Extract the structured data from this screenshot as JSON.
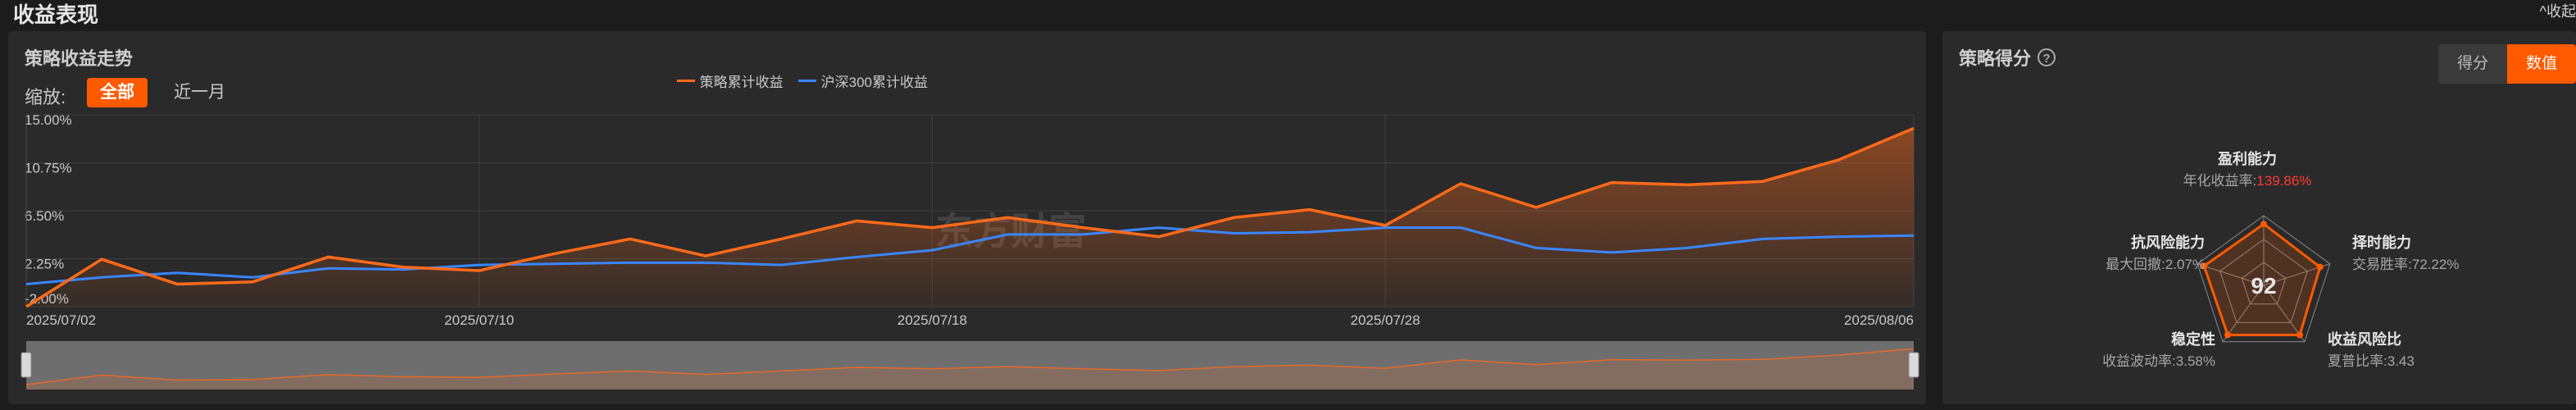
{
  "page": {
    "title": "收益表现",
    "collapse_label": "^收起"
  },
  "trend": {
    "title": "策略收益走势",
    "zoom_label": "缩放:",
    "zoom_all": "全部",
    "zoom_month": "近一月",
    "legend": [
      {
        "name": "策略累计收益",
        "color": "#ff6a1a"
      },
      {
        "name": "沪深300累计收益",
        "color": "#3a86ff"
      }
    ],
    "watermark": "东方财富"
  },
  "chart_data": {
    "type": "line",
    "ylim": [
      -2.0,
      15.0
    ],
    "y_ticks": [
      "15.00%",
      "10.75%",
      "6.50%",
      "2.25%",
      "-2.00%"
    ],
    "x_ticks": [
      "2025/07/02",
      "2025/07/10",
      "2025/07/18",
      "2025/07/28",
      "2025/08/06"
    ],
    "x": [
      "2025/07/02",
      "2025/07/03",
      "2025/07/04",
      "2025/07/07",
      "2025/07/08",
      "2025/07/09",
      "2025/07/10",
      "2025/07/11",
      "2025/07/14",
      "2025/07/15",
      "2025/07/16",
      "2025/07/17",
      "2025/07/18",
      "2025/07/21",
      "2025/07/22",
      "2025/07/23",
      "2025/07/24",
      "2025/07/25",
      "2025/07/28",
      "2025/07/29",
      "2025/07/30",
      "2025/07/31",
      "2025/08/01",
      "2025/08/04",
      "2025/08/05",
      "2025/08/06"
    ],
    "series": [
      {
        "name": "策略累计收益",
        "color": "#ff6a1a",
        "values": [
          -2.0,
          2.2,
          0.0,
          0.2,
          2.4,
          1.5,
          1.2,
          2.7,
          4.0,
          2.5,
          4.0,
          5.6,
          5.0,
          5.9,
          5.0,
          4.2,
          5.9,
          6.6,
          5.2,
          8.9,
          6.8,
          9.0,
          8.8,
          9.1,
          11.0,
          13.8
        ]
      },
      {
        "name": "沪深300累计收益",
        "color": "#3a86ff",
        "values": [
          0.0,
          0.6,
          1.0,
          0.6,
          1.4,
          1.3,
          1.7,
          1.8,
          1.9,
          1.9,
          1.7,
          2.4,
          3.0,
          4.4,
          4.4,
          5.0,
          4.5,
          4.6,
          5.0,
          5.0,
          3.2,
          2.8,
          3.2,
          4.0,
          4.2,
          4.3
        ]
      }
    ],
    "grid": true,
    "legend_position": "top-right"
  },
  "score": {
    "title": "策略得分",
    "help_icon": "question-circle-icon",
    "toggle_score": "得分",
    "toggle_value": "数值",
    "total": "92",
    "axes": [
      {
        "name": "盈利能力",
        "metric": "年化收益率:",
        "value": "139.86%",
        "highlight": true,
        "level": 0.88
      },
      {
        "name": "择时能力",
        "metric": "交易胜率:",
        "value": "72.22%",
        "highlight": false,
        "level": 0.85
      },
      {
        "name": "收益风险比",
        "metric": "夏普比率:",
        "value": "3.43",
        "highlight": false,
        "level": 0.88
      },
      {
        "name": "稳定性",
        "metric": "收益波动率:",
        "value": "3.58%",
        "highlight": false,
        "level": 0.88
      },
      {
        "name": "抗风险能力",
        "metric": "最大回撤:",
        "value": "2.07%",
        "highlight": false,
        "level": 0.9
      }
    ]
  }
}
